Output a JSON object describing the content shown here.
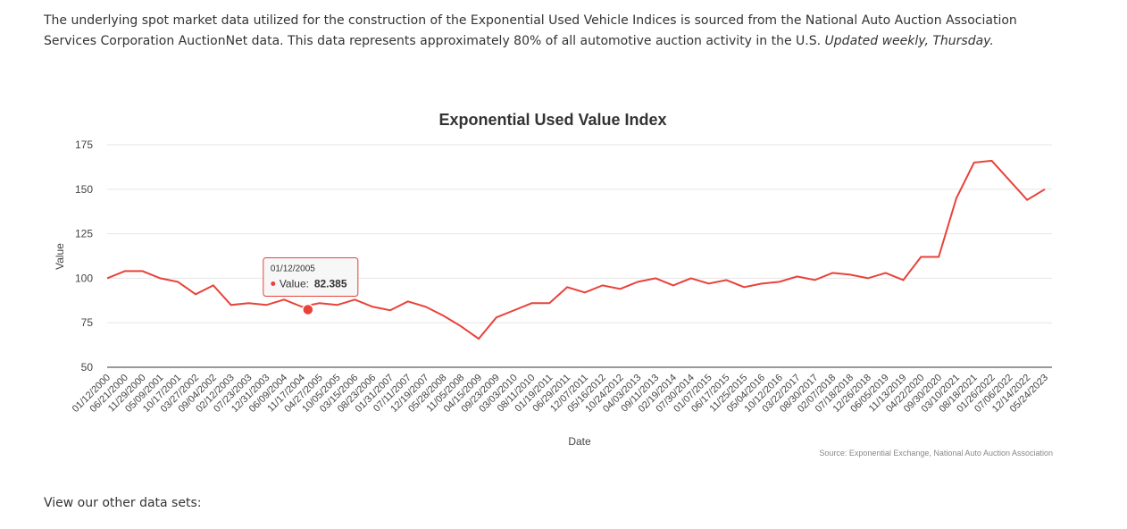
{
  "intro": {
    "text": "The underlying spot market data utilized for the construction of the Exponential Used Vehicle Indices is sourced from the National Auto Auction Association Services Corporation AuctionNet data. This data represents approximately 80% of all automotive auction activity in the U.S.",
    "note": "Updated weekly, Thursday."
  },
  "footer": "View our other data sets:",
  "chart_data": {
    "type": "line",
    "title": "Exponential Used Value Index",
    "x_label": "Date",
    "y_label": "Value",
    "source": "Source: Exponential Exchange, National Auto Auction Association",
    "categories": [
      "01/12/2000",
      "06/21/2000",
      "11/29/2000",
      "05/09/2001",
      "10/17/2001",
      "03/27/2002",
      "09/04/2002",
      "02/12/2003",
      "07/23/2003",
      "12/31/2003",
      "06/09/2004",
      "11/17/2004",
      "04/27/2005",
      "10/05/2005",
      "03/15/2006",
      "08/23/2006",
      "01/31/2007",
      "07/11/2007",
      "12/19/2007",
      "05/28/2008",
      "11/05/2008",
      "04/15/2009",
      "09/23/2009",
      "03/03/2010",
      "08/11/2010",
      "01/19/2011",
      "06/29/2011",
      "12/07/2011",
      "05/16/2012",
      "10/24/2012",
      "04/03/2013",
      "09/11/2013",
      "02/19/2014",
      "07/30/2014",
      "01/07/2015",
      "06/17/2015",
      "11/25/2015",
      "05/04/2016",
      "10/12/2016",
      "03/22/2017",
      "08/30/2017",
      "02/07/2018",
      "07/18/2018",
      "12/26/2018",
      "06/05/2019",
      "11/13/2019",
      "04/22/2020",
      "09/30/2020",
      "03/10/2021",
      "08/18/2021",
      "01/26/2022",
      "07/06/2022",
      "12/14/2022",
      "05/24/2023"
    ],
    "series": [
      {
        "name": "Value",
        "color": "#e8423a",
        "values": [
          100,
          104,
          104,
          100,
          98,
          91,
          96,
          85,
          86,
          85,
          88,
          84,
          86,
          85,
          88,
          84,
          82,
          87,
          84,
          79,
          73,
          66,
          78,
          82,
          86,
          86,
          95,
          92,
          96,
          94,
          98,
          100,
          96,
          100,
          97,
          99,
          95,
          97,
          98,
          101,
          99,
          103,
          102,
          100,
          103,
          99,
          112,
          112,
          145,
          165,
          166,
          155,
          144,
          150
        ]
      }
    ],
    "ylim": [
      50,
      175
    ],
    "yticks": [
      50,
      75,
      100,
      125,
      150,
      175
    ],
    "grid": true,
    "tooltip": {
      "date": "01/12/2005",
      "label": "Value:",
      "value": 82.385
    }
  }
}
